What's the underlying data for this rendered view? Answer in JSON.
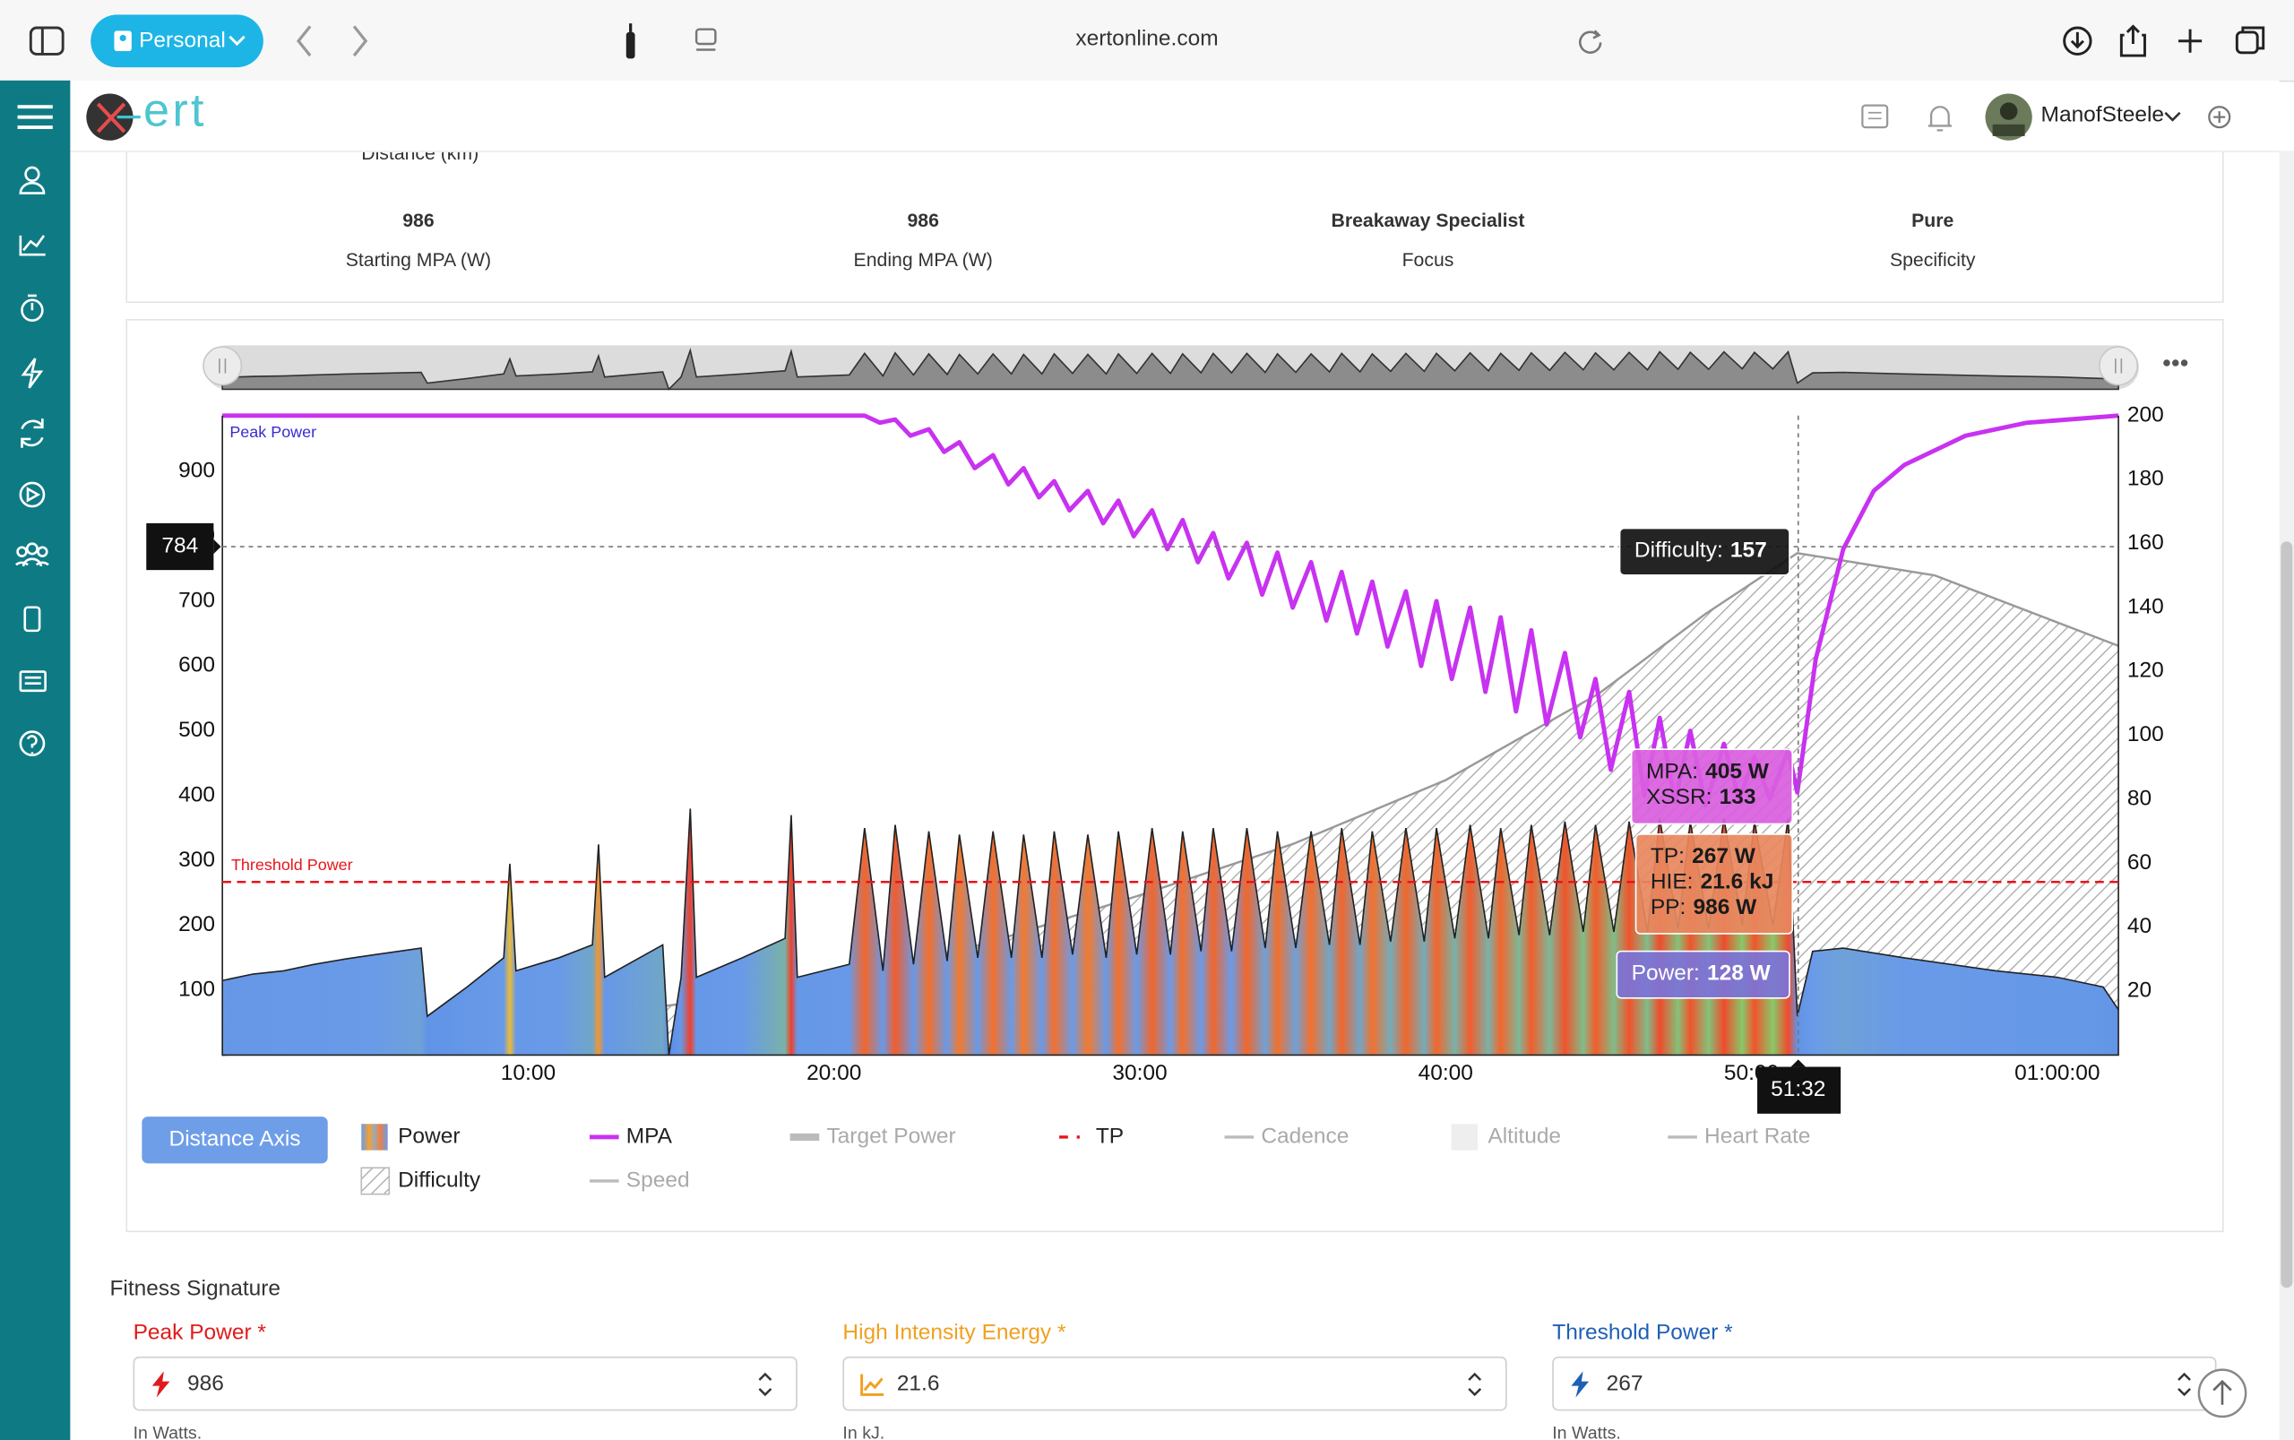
{
  "browser": {
    "profile": "Personal",
    "url": "xertonline.com"
  },
  "app": {
    "logo": "ert",
    "user": "ManofSteele"
  },
  "summary": {
    "partial_label": "Distance (km)",
    "items": [
      {
        "value": 986,
        "label": "Starting MPA (W)"
      },
      {
        "value": 986,
        "label": "Ending MPA (W)"
      },
      {
        "value": "Breakaway Specialist",
        "label": "Focus"
      },
      {
        "value": "Pure",
        "label": "Specificity"
      }
    ]
  },
  "chart_data": {
    "type": "area",
    "xlim": [
      0,
      62
    ],
    "xticks": [
      {
        "value": 10,
        "label": "10:00"
      },
      {
        "value": 20,
        "label": "20:00"
      },
      {
        "value": 30,
        "label": "30:00"
      },
      {
        "value": 40,
        "label": "40:00"
      },
      {
        "value": 50,
        "label": "50:00"
      },
      {
        "value": 60,
        "label": "01:00:00"
      }
    ],
    "ylim": [
      0,
      986
    ],
    "yticks": [
      100,
      200,
      300,
      400,
      500,
      600,
      700,
      800,
      900
    ],
    "y2lim": [
      0,
      200
    ],
    "y2ticks": [
      20,
      40,
      60,
      80,
      100,
      120,
      140,
      160,
      180,
      200
    ],
    "grid": false,
    "series": [
      {
        "name": "Power",
        "style": "area",
        "axis": "y",
        "color": "#222222",
        "active": true,
        "symbol": "stripes",
        "x": [
          0,
          1,
          2,
          3,
          4,
          5,
          6.5,
          6.7,
          8,
          9.2,
          9.4,
          9.6,
          11,
          12.1,
          12.3,
          12.5,
          14.4,
          14.6,
          15,
          15.3,
          15.5,
          17,
          18.4,
          18.6,
          18.8,
          20.5,
          21.0,
          21.6,
          22.0,
          22.6,
          23.1,
          23.7,
          24.1,
          24.7,
          25.2,
          25.8,
          26.2,
          26.8,
          27.2,
          27.8,
          28.3,
          28.9,
          29.3,
          29.9,
          30.4,
          31.0,
          31.4,
          32.0,
          32.4,
          33.0,
          33.5,
          34.1,
          34.5,
          35.1,
          35.6,
          36.2,
          36.6,
          37.2,
          37.6,
          38.2,
          38.7,
          39.3,
          39.7,
          40.3,
          40.8,
          41.4,
          41.8,
          42.4,
          42.8,
          43.4,
          43.9,
          44.5,
          44.9,
          45.5,
          46.0,
          46.6,
          47.0,
          47.6,
          48.0,
          48.6,
          49.1,
          49.7,
          50.1,
          50.7,
          51.2,
          51.5,
          52.0,
          53,
          55,
          58,
          60,
          61.5,
          62
        ],
        "values": [
          115,
          125,
          130,
          140,
          148,
          155,
          165,
          60,
          105,
          150,
          295,
          130,
          150,
          170,
          325,
          120,
          170,
          0,
          120,
          380,
          120,
          150,
          180,
          370,
          120,
          140,
          350,
          130,
          355,
          140,
          345,
          145,
          340,
          150,
          345,
          150,
          340,
          150,
          345,
          155,
          340,
          150,
          345,
          155,
          350,
          155,
          345,
          160,
          350,
          160,
          350,
          165,
          345,
          165,
          345,
          170,
          350,
          170,
          345,
          175,
          350,
          175,
          350,
          180,
          355,
          180,
          350,
          185,
          355,
          185,
          360,
          190,
          355,
          190,
          360,
          190,
          365,
          195,
          360,
          195,
          365,
          200,
          360,
          200,
          365,
          60,
          160,
          165,
          150,
          130,
          120,
          105,
          70
        ]
      },
      {
        "name": "MPA",
        "style": "line",
        "axis": "y",
        "color": "#c832f0",
        "active": true,
        "symbol": "line",
        "x": [
          0,
          21.0,
          21.5,
          22.0,
          22.5,
          23.1,
          23.6,
          24.1,
          24.6,
          25.2,
          25.7,
          26.2,
          26.7,
          27.2,
          27.7,
          28.3,
          28.8,
          29.3,
          29.8,
          30.4,
          30.9,
          31.4,
          31.9,
          32.4,
          32.9,
          33.5,
          34.0,
          34.5,
          35.0,
          35.6,
          36.1,
          36.6,
          37.1,
          37.6,
          38.1,
          38.7,
          39.2,
          39.7,
          40.2,
          40.8,
          41.3,
          41.8,
          42.3,
          42.8,
          43.3,
          43.9,
          44.4,
          44.9,
          45.4,
          46.0,
          46.5,
          47.0,
          47.5,
          48.0,
          48.5,
          49.1,
          49.6,
          50.1,
          50.6,
          51.2,
          51.5,
          52.1,
          53.0,
          54.0,
          55.0,
          57.0,
          59.0,
          62.0
        ],
        "values": [
          986,
          986,
          975,
          980,
          955,
          965,
          930,
          945,
          905,
          925,
          880,
          905,
          860,
          885,
          840,
          870,
          820,
          855,
          800,
          840,
          780,
          825,
          760,
          805,
          735,
          790,
          710,
          775,
          690,
          760,
          670,
          745,
          650,
          730,
          630,
          715,
          600,
          700,
          580,
          690,
          560,
          675,
          530,
          655,
          510,
          620,
          490,
          580,
          440,
          560,
          400,
          520,
          390,
          500,
          385,
          480,
          395,
          460,
          395,
          470,
          405,
          610,
          780,
          870,
          910,
          955,
          975,
          986
        ]
      },
      {
        "name": "Difficulty",
        "style": "hatch",
        "axis": "y2",
        "color": "#999999",
        "active": true,
        "symbol": "hatch",
        "x": [
          0,
          10,
          15,
          20,
          25,
          30,
          35,
          40,
          45,
          48.5,
          51.5,
          56,
          62
        ],
        "values": [
          0,
          10,
          16,
          24,
          35,
          50,
          66,
          86,
          113,
          138,
          157,
          150,
          128
        ]
      }
    ],
    "other_legend": [
      {
        "name": "Target Power",
        "color": "#bbbbbb",
        "active": false,
        "symbol": "thick"
      },
      {
        "name": "TP",
        "color": "#e8141c",
        "active": true,
        "symbol": "dash"
      },
      {
        "name": "Cadence",
        "color": "#bbbbbb",
        "active": false,
        "symbol": "line"
      },
      {
        "name": "Altitude",
        "color": "#eeeeee",
        "active": false,
        "symbol": "box"
      },
      {
        "name": "Heart Rate",
        "color": "#bbbbbb",
        "active": false,
        "symbol": "line"
      },
      {
        "name": "Speed",
        "color": "#bbbbbb",
        "active": false,
        "symbol": "line"
      }
    ],
    "threshold": {
      "label": "Threshold Power",
      "value": 267,
      "color": "#e8141c"
    },
    "peak": {
      "label": "Peak Power",
      "value": 986,
      "color": "#3a2bd0"
    },
    "cursor": {
      "time": {
        "value": 51.53,
        "label": "51:32"
      },
      "power": 784,
      "readouts": [
        {
          "color": "#111111",
          "text_color": "#ffffff",
          "lines": [
            {
              "label": "Difficulty:",
              "value": 157
            }
          ]
        },
        {
          "color": "#d95ee0",
          "text_color": "#1a1a1a",
          "lines": [
            {
              "label": "MPA:",
              "value": "405 W"
            },
            {
              "label": "XSSR:",
              "value": 133
            }
          ]
        },
        {
          "color": "#e8875e",
          "text_color": "#1a1a1a",
          "lines": [
            {
              "label": "TP:",
              "value": "267 W"
            },
            {
              "label": "HIE:",
              "value": "21.6 kJ"
            },
            {
              "label": "PP:",
              "value": "986 W"
            }
          ]
        },
        {
          "color": "#7b73d8",
          "text_color": "#ffffff",
          "lines": [
            {
              "label": "Power:",
              "value": "128 W"
            }
          ]
        }
      ]
    }
  },
  "chart_controls": {
    "button": "Distance Axis"
  },
  "fitness_signature": {
    "title": "Fitness Signature",
    "fields": [
      {
        "label": "Peak Power *",
        "value": 986,
        "hint": "In Watts.",
        "color": "#e01b1b"
      },
      {
        "label": "High Intensity Energy *",
        "value": 21.6,
        "hint": "In kJ.",
        "color": "#f0a020"
      },
      {
        "label": "Threshold Power *",
        "value": 267,
        "hint": "In Watts.",
        "color": "#1f5fb5"
      }
    ]
  }
}
